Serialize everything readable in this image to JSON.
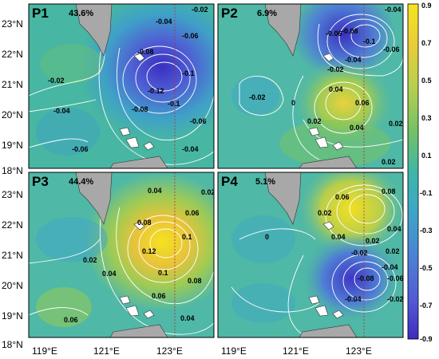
{
  "figure": {
    "panels": [
      {
        "id": "P1",
        "percent": "43.6%",
        "contour_labels": [
          "-0.02",
          "-0.04",
          "-0.06",
          "-0.08",
          "-0.1",
          "-0.12",
          "-0.1",
          "-0.08",
          "-0.06",
          "-0.04",
          "-0.02",
          "-0.04",
          "-0.06",
          "-0.08"
        ]
      },
      {
        "id": "P2",
        "percent": "6.9%",
        "contour_labels": [
          "-0.04",
          "-0.06",
          "-0.08",
          "-0.1",
          "-0.06",
          "-0.04",
          "-0.02",
          "-0.02",
          "0",
          "0.04",
          "0.06",
          "0.02",
          "0.02",
          "0.04",
          "0.02"
        ]
      },
      {
        "id": "P3",
        "percent": "44.4%",
        "contour_labels": [
          "0.04",
          "0.06",
          "0.02",
          "0.08",
          "0.1",
          "0.12",
          "0.1",
          "0.08",
          "0.02",
          "0.04",
          "0.06",
          "0.06",
          "0.04"
        ]
      },
      {
        "id": "P4",
        "percent": "5.1%",
        "contour_labels": [
          "0.06",
          "0.08",
          "0.02",
          "0.04",
          "0.02",
          "0.04",
          "0",
          "0.02",
          "-0.02",
          "-0.04",
          "-0.06",
          "-0.08",
          "-0.04",
          "-0.02"
        ]
      }
    ],
    "y_ticks": [
      "23°N",
      "22°N",
      "21°N",
      "20°N",
      "19°N",
      "18°N"
    ],
    "x_ticks": [
      "119°E",
      "121°E",
      "123°E"
    ],
    "colorbar": {
      "ticks": [
        "0.9",
        "0.7",
        "0.5",
        "0.3",
        "0.1",
        "-0.1",
        "-0.3",
        "-0.5",
        "-0.7",
        "-0.9"
      ],
      "colors": [
        "#f5e51f",
        "#e8cf3a",
        "#c9d24a",
        "#9bcc54",
        "#6ec06a",
        "#45b5a0",
        "#3fa3c4",
        "#4d87d4",
        "#5466d6",
        "#4a36c6"
      ]
    }
  }
}
